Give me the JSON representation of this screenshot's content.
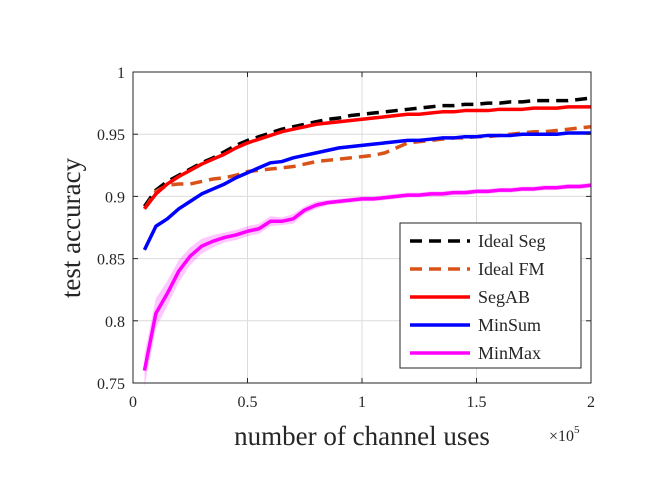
{
  "chart_data": {
    "type": "line",
    "title": "",
    "xlabel": "number of channel uses",
    "ylabel": "test accuracy",
    "x_multiplier_label": "×10",
    "x_multiplier_exponent": "5",
    "xlim": [
      0,
      2
    ],
    "ylim": [
      0.75,
      1
    ],
    "grid": true,
    "legend_position": "bottom-right",
    "xticks": [
      {
        "value": 0,
        "label": "0"
      },
      {
        "value": 0.5,
        "label": "0.5"
      },
      {
        "value": 1,
        "label": "1"
      },
      {
        "value": 1.5,
        "label": "1.5"
      },
      {
        "value": 2,
        "label": "2"
      }
    ],
    "yticks": [
      {
        "value": 0.75,
        "label": "0.75"
      },
      {
        "value": 0.8,
        "label": "0.8"
      },
      {
        "value": 0.85,
        "label": "0.85"
      },
      {
        "value": 0.9,
        "label": "0.9"
      },
      {
        "value": 0.95,
        "label": "0.95"
      },
      {
        "value": 1,
        "label": "1"
      }
    ],
    "x": [
      0.05,
      0.1,
      0.15,
      0.2,
      0.25,
      0.3,
      0.35,
      0.4,
      0.45,
      0.5,
      0.55,
      0.6,
      0.65,
      0.7,
      0.75,
      0.8,
      0.85,
      0.9,
      0.95,
      1.0,
      1.05,
      1.1,
      1.15,
      1.2,
      1.25,
      1.3,
      1.35,
      1.4,
      1.45,
      1.5,
      1.55,
      1.6,
      1.65,
      1.7,
      1.75,
      1.8,
      1.85,
      1.9,
      1.95,
      2.0
    ],
    "series": [
      {
        "name": "Ideal Seg",
        "color": "#000000",
        "style": "dashed",
        "values": [
          0.892,
          0.905,
          0.912,
          0.917,
          0.922,
          0.927,
          0.931,
          0.936,
          0.941,
          0.945,
          0.948,
          0.951,
          0.954,
          0.956,
          0.958,
          0.96,
          0.962,
          0.963,
          0.965,
          0.966,
          0.967,
          0.968,
          0.969,
          0.97,
          0.971,
          0.972,
          0.973,
          0.973,
          0.974,
          0.974,
          0.975,
          0.975,
          0.976,
          0.976,
          0.977,
          0.977,
          0.977,
          0.977,
          0.978,
          0.979
        ]
      },
      {
        "name": "Ideal FM",
        "color": "#d95319",
        "style": "dashed",
        "values": [
          0.89,
          0.904,
          0.909,
          0.91,
          0.91,
          0.912,
          0.914,
          0.915,
          0.917,
          0.92,
          0.921,
          0.922,
          0.923,
          0.924,
          0.926,
          0.928,
          0.929,
          0.93,
          0.931,
          0.932,
          0.933,
          0.935,
          0.939,
          0.943,
          0.944,
          0.945,
          0.946,
          0.947,
          0.947,
          0.948,
          0.948,
          0.949,
          0.95,
          0.951,
          0.952,
          0.952,
          0.953,
          0.954,
          0.955,
          0.956
        ]
      },
      {
        "name": "SegAB",
        "color": "#ff0000",
        "style": "solid",
        "values": [
          0.89,
          0.902,
          0.91,
          0.916,
          0.921,
          0.926,
          0.93,
          0.934,
          0.939,
          0.943,
          0.946,
          0.949,
          0.952,
          0.954,
          0.956,
          0.958,
          0.959,
          0.96,
          0.961,
          0.962,
          0.963,
          0.964,
          0.965,
          0.966,
          0.966,
          0.967,
          0.968,
          0.968,
          0.969,
          0.969,
          0.969,
          0.97,
          0.97,
          0.97,
          0.971,
          0.971,
          0.971,
          0.972,
          0.972,
          0.972
        ]
      },
      {
        "name": "MinSum",
        "color": "#0000ff",
        "style": "solid",
        "values": [
          0.857,
          0.876,
          0.882,
          0.89,
          0.896,
          0.902,
          0.906,
          0.91,
          0.915,
          0.919,
          0.923,
          0.927,
          0.928,
          0.931,
          0.933,
          0.935,
          0.937,
          0.939,
          0.94,
          0.941,
          0.942,
          0.943,
          0.944,
          0.945,
          0.945,
          0.946,
          0.947,
          0.947,
          0.948,
          0.948,
          0.949,
          0.949,
          0.949,
          0.95,
          0.95,
          0.95,
          0.95,
          0.951,
          0.951,
          0.951
        ]
      },
      {
        "name": "MinMax",
        "color": "#ff00ff",
        "style": "solid",
        "band": [
          0.013,
          0.012,
          0.01,
          0.009,
          0.007,
          0.006,
          0.005,
          0.004,
          0.004,
          0.004,
          0.004,
          0.004,
          0.003,
          0.004,
          0.003,
          0.003,
          0.002,
          0.002,
          0.002,
          0.002,
          0.002,
          0.002,
          0.002,
          0.002,
          0.002,
          0.002,
          0.002,
          0.002,
          0.002,
          0.002,
          0.002,
          0.002,
          0.002,
          0.002,
          0.002,
          0.002,
          0.002,
          0.002,
          0.002,
          0.002
        ],
        "values": [
          0.76,
          0.806,
          0.822,
          0.84,
          0.852,
          0.86,
          0.864,
          0.867,
          0.869,
          0.872,
          0.874,
          0.88,
          0.88,
          0.882,
          0.889,
          0.893,
          0.895,
          0.896,
          0.897,
          0.898,
          0.898,
          0.899,
          0.9,
          0.901,
          0.901,
          0.902,
          0.902,
          0.903,
          0.903,
          0.904,
          0.904,
          0.905,
          0.905,
          0.906,
          0.906,
          0.907,
          0.907,
          0.908,
          0.908,
          0.909
        ]
      }
    ]
  }
}
